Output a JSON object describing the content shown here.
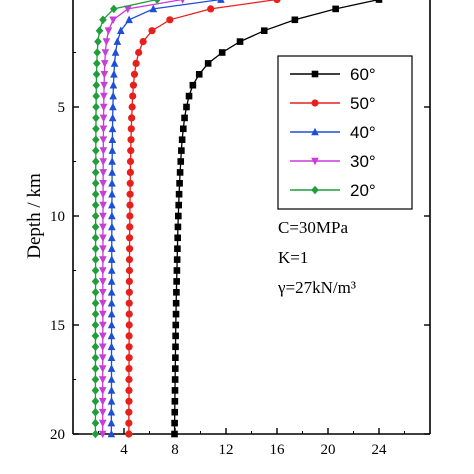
{
  "chart_data": {
    "type": "line",
    "xlabel": "",
    "ylabel": "Depth / km",
    "xlim": [
      0,
      28
    ],
    "ylim": [
      0,
      20
    ],
    "y_inverted": true,
    "x_ticks": [
      4,
      8,
      12,
      16,
      20,
      24
    ],
    "y_ticks": [
      5,
      10,
      15,
      20
    ],
    "grid": false,
    "legend_position": "top-right",
    "annotations": [
      "C=30MPa",
      "K=1",
      "γ=27kN/m³"
    ],
    "y": [
      0.07,
      0.5,
      1,
      1.5,
      2,
      2.5,
      3,
      3.5,
      4,
      4.5,
      5,
      5.5,
      6,
      6.5,
      7,
      7.5,
      8,
      8.5,
      9,
      9.5,
      10,
      10.5,
      11,
      11.5,
      12,
      12.5,
      13,
      13.5,
      14,
      14.5,
      15,
      15.5,
      16,
      16.5,
      17,
      17.5,
      18,
      18.5,
      19,
      19.5,
      20
    ],
    "series": [
      {
        "name": "60°",
        "color": "#000000",
        "marker": "square",
        "x": [
          24,
          20.6,
          17.4,
          15.0,
          13.1,
          11.7,
          10.6,
          9.9,
          9.4,
          9.1,
          8.9,
          8.75,
          8.65,
          8.56,
          8.5,
          8.45,
          8.4,
          8.36,
          8.32,
          8.29,
          8.26,
          8.23,
          8.21,
          8.19,
          8.17,
          8.15,
          8.13,
          8.11,
          8.09,
          8.08,
          8.06,
          8.05,
          8.04,
          8.03,
          8.02,
          8.01,
          8.0,
          7.99,
          7.98,
          7.97,
          7.96
        ]
      },
      {
        "name": "50°",
        "color": "#e8201c",
        "marker": "circle",
        "x": [
          16.0,
          10.8,
          7.6,
          6.2,
          5.5,
          5.15,
          4.95,
          4.82,
          4.74,
          4.68,
          4.64,
          4.6,
          4.57,
          4.55,
          4.53,
          4.51,
          4.5,
          4.49,
          4.48,
          4.47,
          4.46,
          4.45,
          4.44,
          4.44,
          4.43,
          4.43,
          4.42,
          4.42,
          4.41,
          4.41,
          4.41,
          4.4,
          4.4,
          4.4,
          4.39,
          4.39,
          4.39,
          4.39,
          4.38,
          4.38,
          4.38
        ]
      },
      {
        "name": "40°",
        "color": "#1f4fd8",
        "marker": "triangle-up",
        "x": [
          11.6,
          6.3,
          4.4,
          3.75,
          3.48,
          3.34,
          3.26,
          3.21,
          3.17,
          3.15,
          3.13,
          3.11,
          3.1,
          3.09,
          3.08,
          3.07,
          3.07,
          3.06,
          3.06,
          3.05,
          3.05,
          3.05,
          3.04,
          3.04,
          3.04,
          3.04,
          3.03,
          3.03,
          3.03,
          3.03,
          3.03,
          3.02,
          3.02,
          3.02,
          3.02,
          3.02,
          3.02,
          3.02,
          3.01,
          3.01,
          3.01
        ]
      },
      {
        "name": "30°",
        "color": "#c83cd8",
        "marker": "triangle-down",
        "x": [
          8.6,
          4.3,
          3.15,
          2.78,
          2.62,
          2.54,
          2.49,
          2.46,
          2.44,
          2.42,
          2.41,
          2.4,
          2.39,
          2.38,
          2.38,
          2.37,
          2.37,
          2.36,
          2.36,
          2.36,
          2.35,
          2.35,
          2.35,
          2.35,
          2.35,
          2.34,
          2.34,
          2.34,
          2.34,
          2.34,
          2.34,
          2.34,
          2.33,
          2.33,
          2.33,
          2.33,
          2.33,
          2.33,
          2.33,
          2.33,
          2.33
        ]
      },
      {
        "name": "20°",
        "color": "#1f9e3a",
        "marker": "diamond",
        "x": [
          6.6,
          3.2,
          2.35,
          2.08,
          1.96,
          1.9,
          1.87,
          1.85,
          1.83,
          1.82,
          1.81,
          1.8,
          1.8,
          1.79,
          1.79,
          1.79,
          1.78,
          1.78,
          1.78,
          1.78,
          1.78,
          1.77,
          1.77,
          1.77,
          1.77,
          1.77,
          1.77,
          1.77,
          1.77,
          1.77,
          1.76,
          1.76,
          1.76,
          1.76,
          1.76,
          1.76,
          1.76,
          1.76,
          1.76,
          1.76,
          1.76
        ]
      }
    ]
  }
}
